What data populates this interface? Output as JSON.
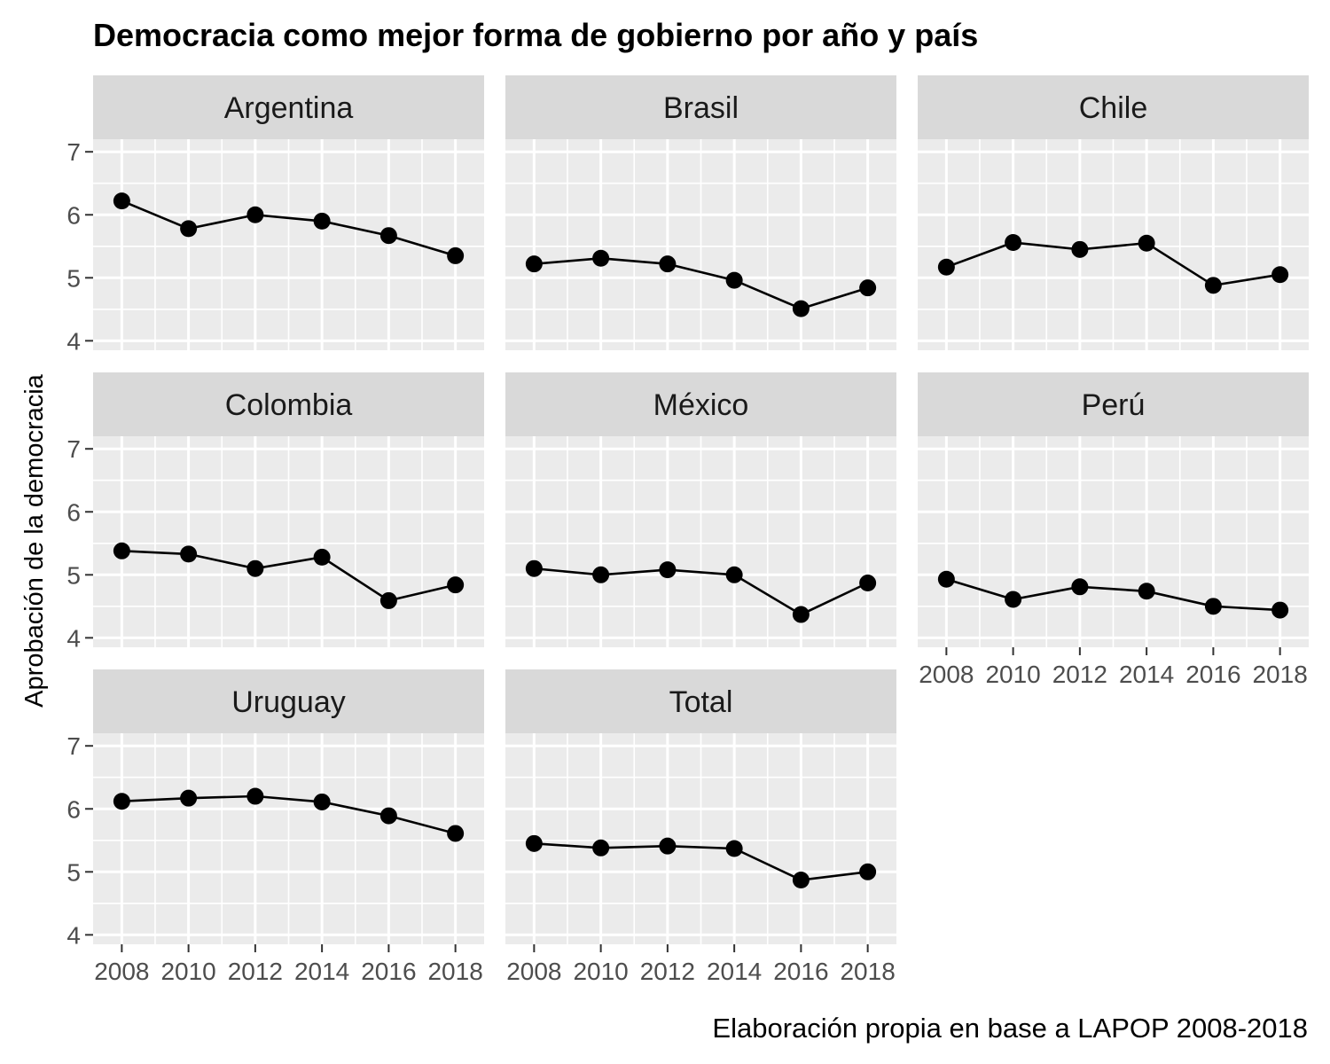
{
  "chart_data": {
    "type": "line",
    "title": "Democracia como mejor forma de gobierno por año y país",
    "ylabel": "Aprobación de la democracia",
    "xlabel": "",
    "caption": "Elaboración propia en base a LAPOP 2008-2018",
    "x": [
      2008,
      2010,
      2012,
      2014,
      2016,
      2018
    ],
    "x_tick_labels": [
      "2008",
      "2010",
      "2012",
      "2014",
      "2016",
      "2018"
    ],
    "y_ticks": [
      4,
      5,
      6,
      7
    ],
    "ylim": [
      3.85,
      7.2
    ],
    "grid": true,
    "legend": "none",
    "colors": {
      "panel_bg": "#ebebeb",
      "strip_bg": "#d9d9d9",
      "grid_line": "#ffffff",
      "series": "#000000",
      "tick_text": "#4d4d4d"
    },
    "facets": [
      {
        "name": "Argentina",
        "values": [
          6.22,
          5.78,
          6.0,
          5.9,
          5.67,
          5.35
        ]
      },
      {
        "name": "Brasil",
        "values": [
          5.22,
          5.31,
          5.22,
          4.96,
          4.51,
          4.84
        ]
      },
      {
        "name": "Chile",
        "values": [
          5.17,
          5.56,
          5.45,
          5.55,
          4.88,
          5.05
        ]
      },
      {
        "name": "Colombia",
        "values": [
          5.38,
          5.33,
          5.1,
          5.28,
          4.59,
          4.84
        ]
      },
      {
        "name": "México",
        "values": [
          5.1,
          5.0,
          5.08,
          5.0,
          4.37,
          4.87
        ]
      },
      {
        "name": "Perú",
        "values": [
          4.93,
          4.61,
          4.81,
          4.74,
          4.5,
          4.44
        ]
      },
      {
        "name": "Uruguay",
        "values": [
          6.12,
          6.17,
          6.2,
          6.11,
          5.89,
          5.61
        ]
      },
      {
        "name": "Total",
        "values": [
          5.45,
          5.38,
          5.41,
          5.37,
          4.87,
          5.0
        ]
      }
    ]
  }
}
